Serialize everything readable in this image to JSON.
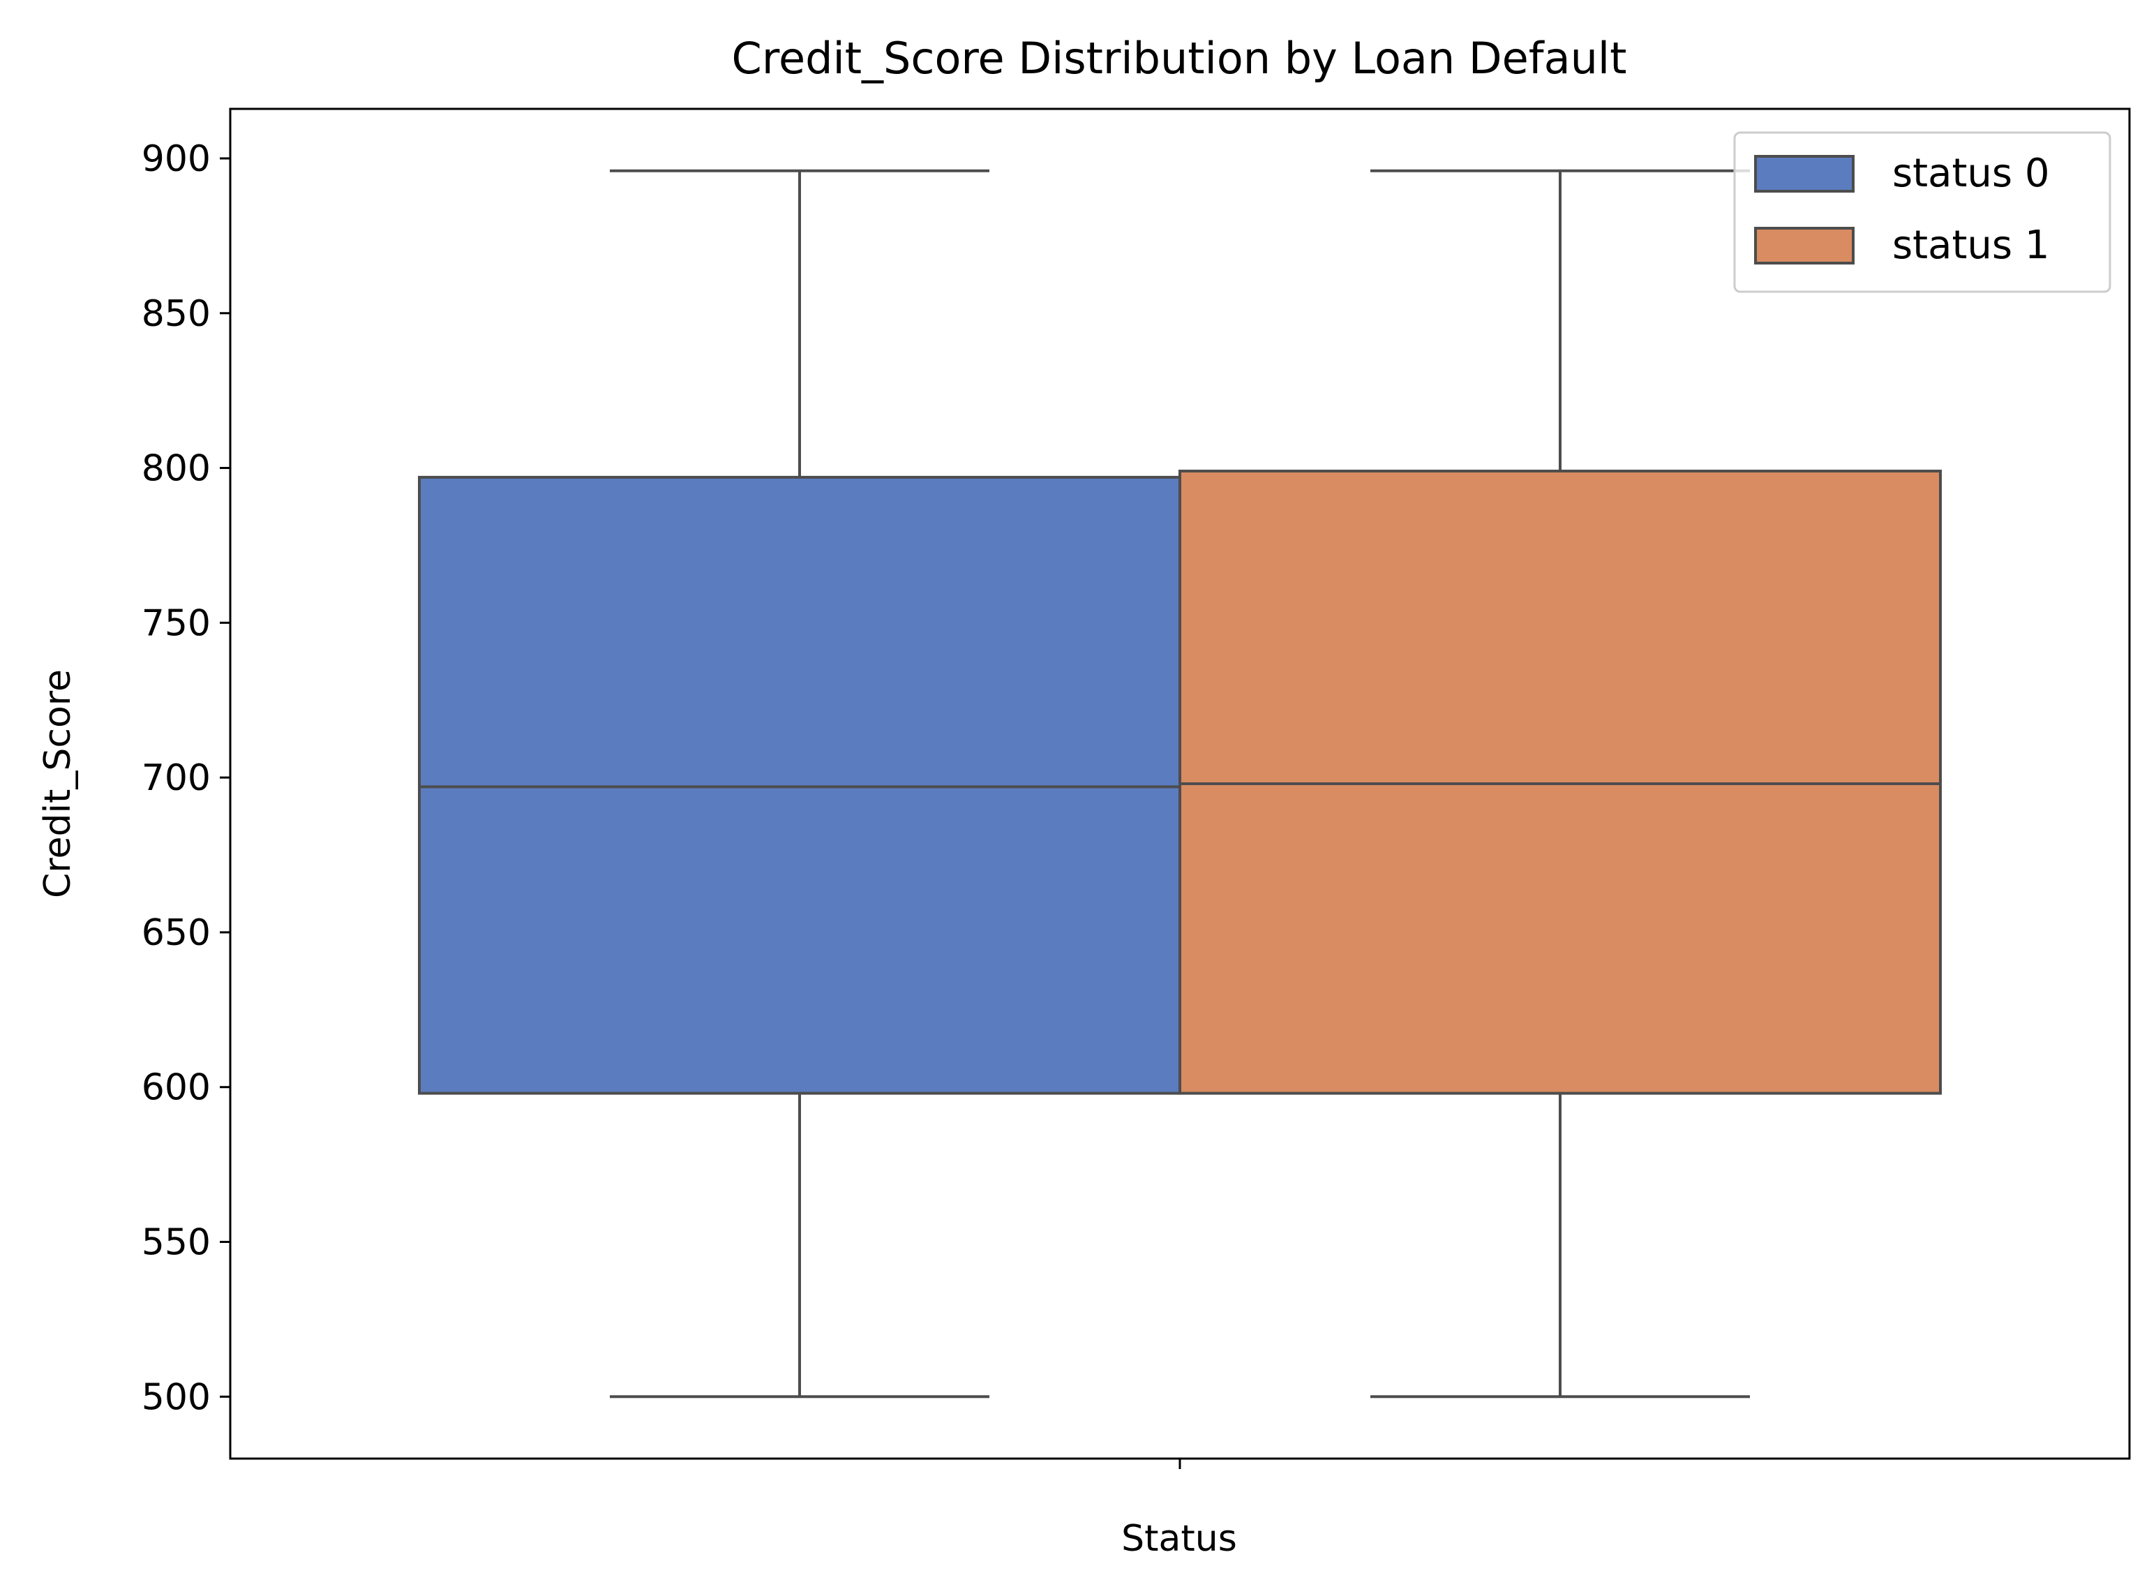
{
  "chart_data": {
    "type": "box",
    "title": "Credit_Score Distribution by Loan Default",
    "xlabel": "Status",
    "ylabel": "Credit_Score",
    "ylim": [
      480,
      916
    ],
    "yticks": [
      500,
      550,
      600,
      650,
      700,
      750,
      800,
      850,
      900
    ],
    "categories": [
      ""
    ],
    "grid": false,
    "legend_position": "top-right",
    "series": [
      {
        "name": "status 0",
        "color": "#5b7cbf",
        "whisker_low": 500,
        "q1": 598,
        "median": 697,
        "q3": 797,
        "whisker_high": 896
      },
      {
        "name": "status 1",
        "color": "#d98b61",
        "whisker_low": 500,
        "q1": 598,
        "median": 698,
        "q3": 799,
        "whisker_high": 896
      }
    ]
  }
}
